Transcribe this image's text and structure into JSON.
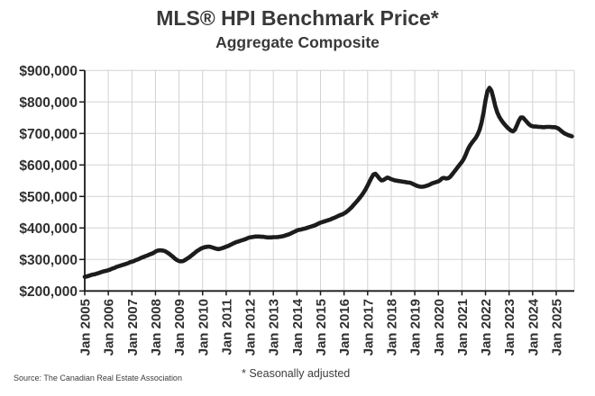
{
  "title": "MLS® HPI Benchmark Price*",
  "subtitle": "Aggregate Composite",
  "footer": {
    "source": "Source: The Canadian Real Estate Association",
    "note": "* Seasonally adjusted"
  },
  "chart_data": {
    "type": "line",
    "title": "MLS® HPI Benchmark Price*",
    "subtitle": "Aggregate Composite",
    "xlabel": "",
    "ylabel": "",
    "unit": "CAD",
    "values_unit": "thousands of CAD dollars",
    "x_start": "Jan 2005",
    "x_end": "Sep 2025",
    "x_interval": "monthly",
    "grid": true,
    "legend": "none",
    "ylim_thousands": [
      200,
      900
    ],
    "y_tick_step_thousands": 100,
    "y_tick_labels": [
      "$900,000",
      "$800,000",
      "$700,000",
      "$600,000",
      "$500,000",
      "$400,000",
      "$300,000",
      "$200,000"
    ],
    "x_tick_labels": [
      "Jan 2005",
      "Jan 2006",
      "Jan 2007",
      "Jan 2008",
      "Jan 2009",
      "Jan 2010",
      "Jan 2011",
      "Jan 2012",
      "Jan 2013",
      "Jan 2014",
      "Jan 2015",
      "Jan 2016",
      "Jan 2017",
      "Jan 2018",
      "Jan 2019",
      "Jan 2020",
      "Jan 2021",
      "Jan 2022",
      "Jan 2023",
      "Jan 2024",
      "Jan 2025"
    ],
    "line_color": "#1c1c1c",
    "grid_color": "#d2d2d2",
    "axis_color": "#1a1a1a",
    "text_color": "#303030",
    "series": [
      {
        "name": "Aggregate Composite benchmark price (seasonally adjusted)",
        "values_thousands": [
          245,
          246,
          248,
          250,
          252,
          253,
          255,
          257,
          259,
          261,
          263,
          264,
          266,
          268,
          271,
          273,
          276,
          278,
          280,
          282,
          284,
          286,
          288,
          291,
          293,
          295,
          298,
          300,
          303,
          306,
          308,
          311,
          313,
          316,
          318,
          321,
          325,
          328,
          329,
          329,
          328,
          326,
          322,
          318,
          313,
          308,
          302,
          298,
          295,
          294,
          295,
          298,
          302,
          306,
          311,
          316,
          321,
          326,
          330,
          334,
          337,
          339,
          340,
          341,
          340,
          338,
          336,
          334,
          333,
          334,
          336,
          338,
          341,
          343,
          346,
          349,
          352,
          355,
          357,
          359,
          361,
          363,
          365,
          368,
          370,
          371,
          372,
          373,
          373,
          373,
          372,
          372,
          371,
          370,
          370,
          370,
          371,
          371,
          371,
          372,
          373,
          374,
          376,
          378,
          380,
          383,
          386,
          389,
          392,
          394,
          395,
          397,
          398,
          400,
          402,
          404,
          406,
          408,
          411,
          414,
          417,
          419,
          421,
          423,
          425,
          427,
          430,
          432,
          435,
          438,
          441,
          443,
          446,
          450,
          455,
          461,
          467,
          474,
          481,
          488,
          496,
          504,
          513,
          523,
          535,
          548,
          560,
          570,
          572,
          565,
          557,
          551,
          552,
          556,
          560,
          558,
          555,
          553,
          551,
          550,
          549,
          548,
          547,
          546,
          545,
          544,
          543,
          540,
          537,
          534,
          532,
          531,
          531,
          532,
          534,
          536,
          539,
          542,
          544,
          546,
          548,
          552,
          558,
          559,
          557,
          558,
          562,
          570,
          578,
          586,
          594,
          602,
          610,
          620,
          634,
          649,
          661,
          670,
          678,
          686,
          697,
          712,
          735,
          767,
          804,
          834,
          845,
          836,
          812,
          787,
          767,
          753,
          743,
          734,
          727,
          720,
          714,
          709,
          707,
          712,
          726,
          741,
          751,
          751,
          744,
          737,
          730,
          725,
          723,
          722,
          722,
          721,
          721,
          720,
          720,
          721,
          721,
          721,
          720,
          720,
          719,
          716,
          711,
          706,
          701,
          698,
          695,
          693,
          691
        ]
      }
    ]
  }
}
